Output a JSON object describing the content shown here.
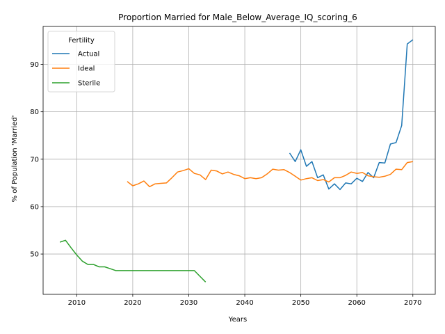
{
  "chart_data": {
    "type": "line",
    "title": "Proportion Married for Male_Below_Average_IQ_scoring_6",
    "xlabel": "Years",
    "ylabel": "% of Population 'Married'",
    "xlim": [
      2004,
      2074
    ],
    "ylim": [
      41.5,
      98
    ],
    "xticks": [
      2010,
      2020,
      2030,
      2040,
      2050,
      2060,
      2070
    ],
    "yticks": [
      50,
      60,
      70,
      80,
      90
    ],
    "grid": true,
    "legend": {
      "title": "Fertility",
      "placement": "top-left",
      "entries": [
        "Actual",
        "Ideal",
        "Sterile"
      ]
    },
    "series": [
      {
        "name": "Actual",
        "color": "#1f77b4",
        "x": [
          2048,
          2049,
          2050,
          2051,
          2052,
          2053,
          2054,
          2055,
          2056,
          2057,
          2058,
          2059,
          2060,
          2061,
          2062,
          2063,
          2064,
          2065,
          2066,
          2067,
          2068,
          2069,
          2070
        ],
        "y": [
          71.3,
          69.5,
          72.0,
          68.5,
          69.5,
          66.1,
          66.7,
          63.7,
          64.8,
          63.6,
          65.0,
          64.8,
          66.0,
          65.3,
          67.2,
          66.1,
          69.3,
          69.2,
          73.2,
          73.5,
          77.1,
          94.3,
          95.2
        ]
      },
      {
        "name": "Ideal",
        "color": "#ff7f0e",
        "x": [
          2019,
          2020,
          2021,
          2022,
          2023,
          2024,
          2025,
          2026,
          2027,
          2028,
          2029,
          2030,
          2031,
          2032,
          2033,
          2034,
          2035,
          2036,
          2037,
          2038,
          2039,
          2040,
          2041,
          2042,
          2043,
          2044,
          2045,
          2046,
          2047,
          2048,
          2049,
          2050,
          2051,
          2052,
          2053,
          2054,
          2055,
          2056,
          2057,
          2058,
          2059,
          2060,
          2061,
          2062,
          2063,
          2064,
          2065,
          2066,
          2067,
          2068,
          2069,
          2070
        ],
        "y": [
          65.3,
          64.4,
          64.8,
          65.4,
          64.2,
          64.8,
          64.9,
          65.0,
          66.1,
          67.3,
          67.6,
          68.0,
          67.0,
          66.7,
          65.7,
          67.7,
          67.5,
          66.9,
          67.3,
          66.8,
          66.5,
          65.9,
          66.1,
          65.9,
          66.1,
          66.9,
          67.9,
          67.7,
          67.8,
          67.2,
          66.4,
          65.6,
          65.9,
          66.1,
          65.5,
          65.7,
          65.2,
          66.1,
          66.1,
          66.6,
          67.3,
          67.0,
          67.2,
          66.5,
          66.3,
          66.2,
          66.4,
          66.8,
          67.9,
          67.8,
          69.3,
          69.5
        ]
      },
      {
        "name": "Sterile",
        "color": "#2ca02c",
        "x": [
          2007,
          2008,
          2009,
          2010,
          2011,
          2012,
          2013,
          2014,
          2015,
          2016,
          2017,
          2018,
          2019,
          2020,
          2021,
          2022,
          2023,
          2024,
          2025,
          2026,
          2027,
          2028,
          2029,
          2030,
          2031,
          2032,
          2033
        ],
        "y": [
          52.5,
          52.9,
          51.3,
          49.8,
          48.5,
          47.8,
          47.8,
          47.3,
          47.3,
          46.9,
          46.5,
          46.5,
          46.5,
          46.5,
          46.5,
          46.5,
          46.5,
          46.5,
          46.5,
          46.5,
          46.5,
          46.5,
          46.5,
          46.5,
          46.5,
          45.3,
          44.1
        ]
      }
    ]
  }
}
